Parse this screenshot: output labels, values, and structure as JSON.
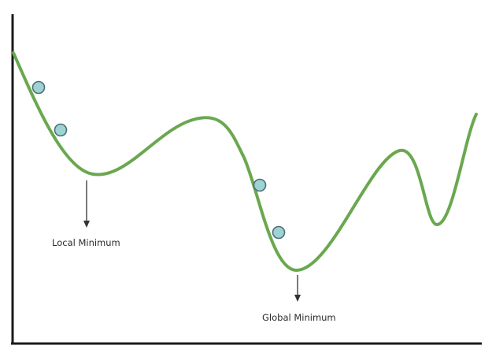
{
  "title": "",
  "labels": {
    "local_minimum": "Local Minimum",
    "global_minimum": "Global Minimum"
  },
  "colors": {
    "curve": "#6aa84f",
    "ball_fill": "#9fd3d3",
    "ball_stroke": "#4a6f78",
    "axis": "#1a1a1a",
    "arrow": "#333333",
    "text": "#2b2b2b"
  },
  "elements": {
    "curve": "loss-curve",
    "balls": [
      "ball",
      "ball",
      "ball",
      "ball"
    ],
    "axes": [
      "y-axis",
      "x-axis"
    ],
    "arrows": [
      "local-minimum-arrow",
      "global-minimum-arrow"
    ]
  }
}
